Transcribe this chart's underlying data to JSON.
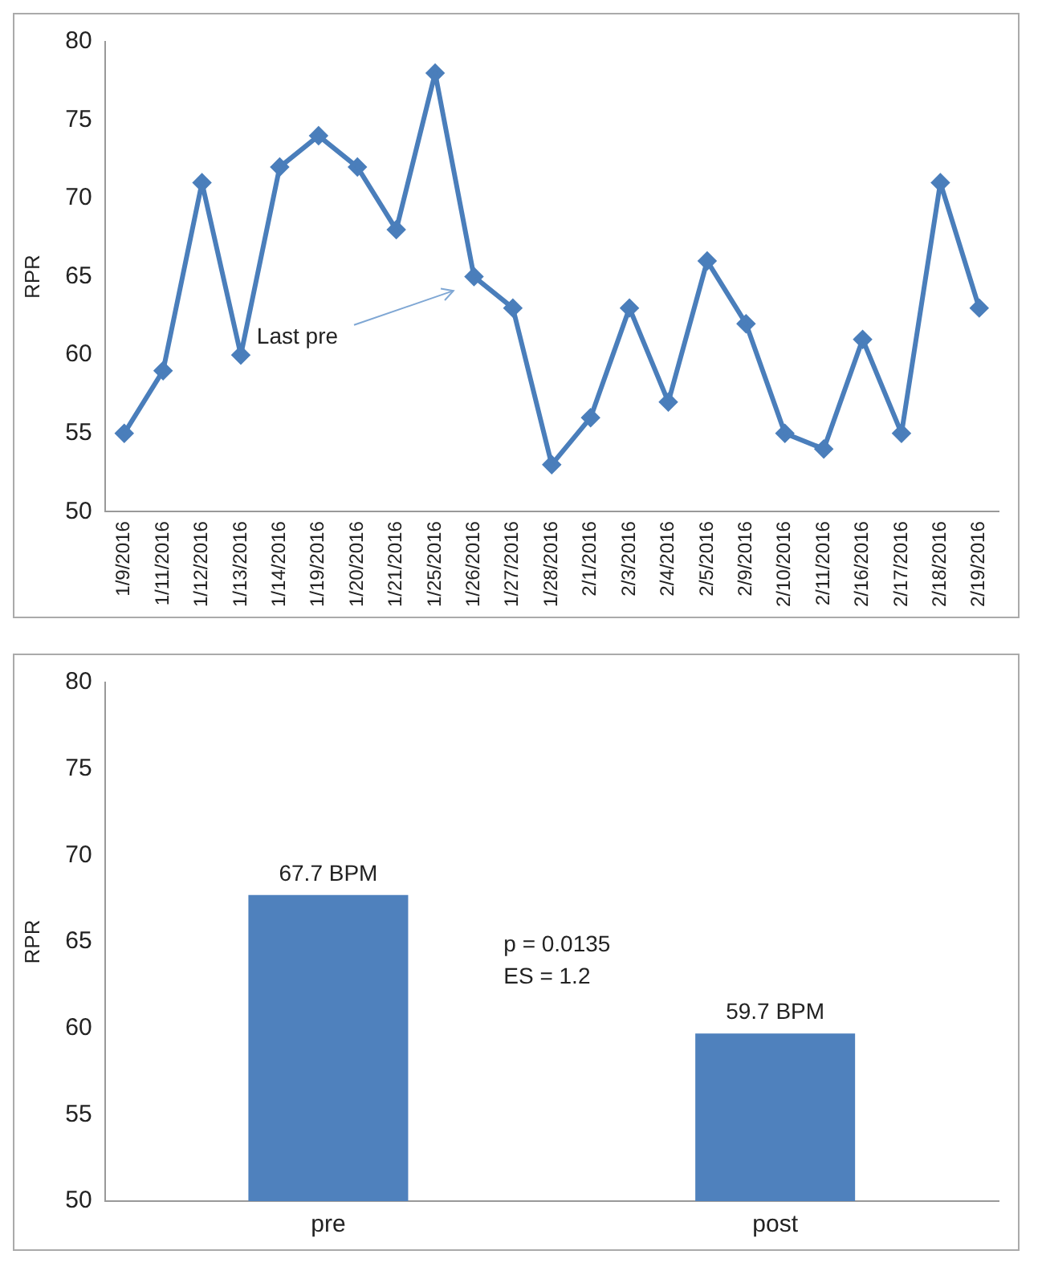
{
  "chart_data": [
    {
      "type": "line",
      "ylabel": "RPR",
      "categories": [
        "1/9/2016",
        "1/11/2016",
        "1/12/2016",
        "1/13/2016",
        "1/14/2016",
        "1/19/2016",
        "1/20/2016",
        "1/21/2016",
        "1/25/2016",
        "1/26/2016",
        "1/27/2016",
        "1/28/2016",
        "2/1/2016",
        "2/3/2016",
        "2/4/2016",
        "2/5/2016",
        "2/9/2016",
        "2/10/2016",
        "2/11/2016",
        "2/16/2016",
        "2/17/2016",
        "2/18/2016",
        "2/19/2016"
      ],
      "series": [
        {
          "color": "#4a7ebb",
          "values": [
            55,
            59,
            71,
            60,
            72,
            74,
            72,
            68,
            78,
            65,
            63,
            53,
            56,
            63,
            57,
            66,
            62,
            55,
            54,
            61,
            55,
            71,
            63
          ]
        }
      ],
      "ylim": [
        50,
        80
      ],
      "yticks": [
        50,
        55,
        60,
        65,
        70,
        75,
        80
      ],
      "marker": "diamond",
      "line_style": "solid",
      "annotations": [
        "Last pre"
      ]
    },
    {
      "type": "bar",
      "ylabel": "RPR",
      "categories": [
        "pre",
        "post"
      ],
      "series": [
        {
          "color": "#4f81bd",
          "values": [
            67.7,
            59.7
          ]
        }
      ],
      "value_labels": [
        "67.7 BPM",
        "59.7 BPM"
      ],
      "ylim": [
        50,
        80
      ],
      "yticks": [
        50,
        55,
        60,
        65,
        70,
        75,
        80
      ],
      "annotations": [
        "p = 0.0135",
        "ES = 1.2"
      ]
    }
  ]
}
